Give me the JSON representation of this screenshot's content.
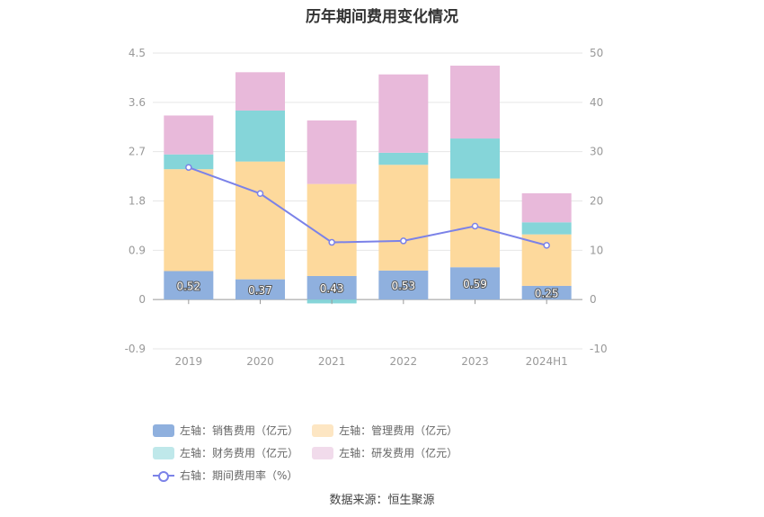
{
  "chart_data": {
    "type": "bar",
    "title": "历年期间费用变化情况",
    "categories": [
      "2019",
      "2020",
      "2021",
      "2022",
      "2023",
      "2024H1"
    ],
    "left_axis": {
      "ylim": [
        -0.9,
        4.5
      ],
      "ticks": [
        "-0.9",
        "0",
        "0.9",
        "1.8",
        "2.7",
        "3.6",
        "4.5"
      ]
    },
    "right_axis": {
      "ylim": [
        -10,
        50
      ],
      "ticks": [
        "-10",
        "0",
        "10",
        "20",
        "30",
        "40",
        "50"
      ]
    },
    "series": [
      {
        "name": "左轴：销售费用（亿元）",
        "type": "stacked-bar",
        "color": "#8fb0de",
        "values": [
          0.52,
          0.37,
          0.43,
          0.53,
          0.59,
          0.25
        ],
        "labels": [
          "0.52",
          "0.37",
          "0.43",
          "0.53",
          "0.59",
          "0.25"
        ]
      },
      {
        "name": "左轴：管理费用（亿元）",
        "type": "stacked-bar",
        "color": "#fdd99c",
        "values": [
          1.86,
          2.15,
          1.68,
          1.93,
          1.62,
          0.94
        ]
      },
      {
        "name": "左轴：财务费用（亿元）",
        "type": "stacked-bar",
        "color": "#85d5d9",
        "values": [
          0.27,
          0.93,
          -0.07,
          0.22,
          0.73,
          0.22
        ]
      },
      {
        "name": "左轴：研发费用（亿元）",
        "type": "stacked-bar",
        "color": "#e8b9da",
        "values": [
          0.71,
          0.7,
          1.16,
          1.43,
          1.33,
          0.53
        ]
      },
      {
        "name": "右轴：期间费用率（%）",
        "type": "line",
        "color": "#7b82e8",
        "values": [
          26.8,
          21.5,
          11.6,
          11.9,
          14.9,
          11.0
        ]
      }
    ],
    "legend_position": "bottom",
    "source": "数据来源：恒生聚源"
  }
}
